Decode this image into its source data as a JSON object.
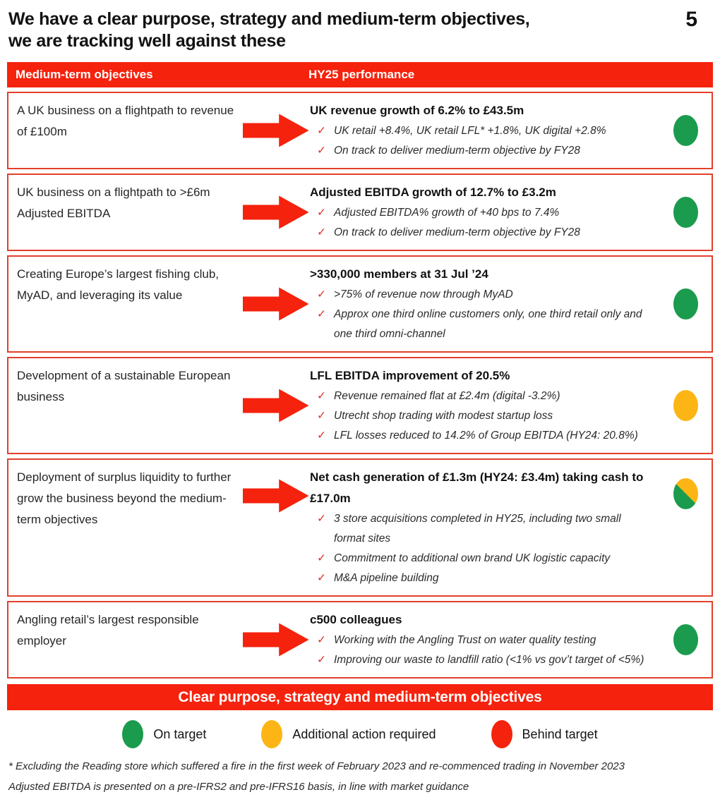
{
  "header": {
    "title_line1": "We have a clear purpose, strategy and medium-term objectives,",
    "title_line2": "we are tracking well against these",
    "page_number": "5"
  },
  "table": {
    "headers": [
      "Medium-term objectives",
      "HY25 performance"
    ],
    "rows": [
      {
        "objective": "A UK business on a flightpath to revenue of £100m",
        "headline": "UK revenue growth of 6.2% to £43.5m",
        "bullets": [
          "UK retail +8.4%, UK retail LFL* +1.8%, UK digital +2.8%",
          "On track to deliver medium-term objective by FY28"
        ],
        "status": "green"
      },
      {
        "objective": "UK business on a flightpath to >£6m Adjusted EBITDA",
        "headline": "Adjusted EBITDA growth of 12.7% to £3.2m",
        "bullets": [
          "Adjusted EBITDA% growth of +40 bps to 7.4%",
          "On track to deliver medium-term objective by FY28"
        ],
        "status": "green"
      },
      {
        "objective": "Creating Europe’s largest fishing club, MyAD, and leveraging its value",
        "headline": ">330,000 members at 31 Jul ’24",
        "bullets": [
          ">75% of revenue now through MyAD",
          "Approx one third online customers only, one third retail only and one third omni-channel"
        ],
        "status": "green"
      },
      {
        "objective": "Development of a sustainable European business",
        "headline": "LFL EBITDA improvement of 20.5%",
        "bullets": [
          "Revenue remained flat at £2.4m (digital -3.2%)",
          "Utrecht shop trading with modest startup loss",
          "LFL losses reduced to 14.2% of Group EBITDA (HY24: 20.8%)"
        ],
        "status": "amber"
      },
      {
        "objective": "Deployment of surplus liquidity to further grow the business beyond the medium-term objectives",
        "headline": "Net cash generation of £1.3m (HY24: £3.4m) taking cash to £17.0m",
        "bullets": [
          "3 store acquisitions completed in HY25, including two small format sites",
          "Commitment to additional own brand UK logistic capacity",
          "M&A pipeline building"
        ],
        "status": "amber-green-split"
      },
      {
        "objective": "Angling retail’s largest responsible employer",
        "headline": "c500 colleagues",
        "bullets": [
          "Working with the Angling Trust on water quality testing",
          "Improving our waste to landfill ratio (<1% vs gov’t target of <5%)"
        ],
        "status": "green"
      }
    ]
  },
  "banner": {
    "label": "Clear purpose, strategy and medium-term objectives"
  },
  "legend": {
    "items": [
      {
        "label": "On target",
        "status": "green"
      },
      {
        "label": "Additional action required",
        "status": "amber"
      },
      {
        "label": "Behind target",
        "status": "red"
      }
    ]
  },
  "footnotes": {
    "line1": "* Excluding the Reading store which suffered a fire in the first week of February 2023 and re-commenced trading in November 2023",
    "line2": "Adjusted EBITDA is presented on a pre-IFRS2 and pre-IFRS16 basis, in line with market guidance"
  },
  "colors": {
    "red": "#F5220D",
    "border_red": "#E2402B",
    "green": "#1B9B4D",
    "amber": "#FCB514",
    "check_red": "#DE3428"
  },
  "icons": {
    "checkmark": "✓"
  }
}
